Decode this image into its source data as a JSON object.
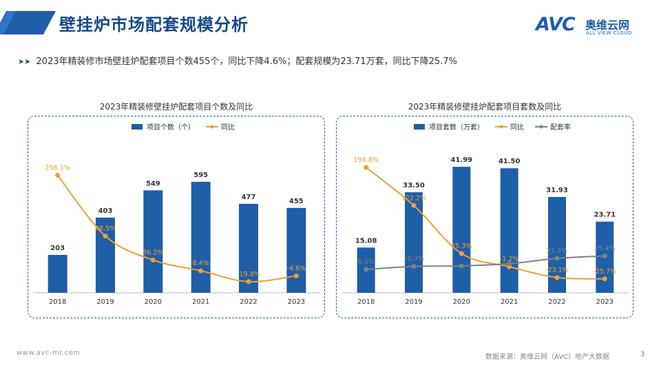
{
  "header": {
    "title": "壁挂炉市场配套规模分析",
    "logo_text": "AVC",
    "logo_cn": "奥维云网",
    "logo_en": "ALL VIEW CLOUD"
  },
  "summary": "2023年精装修市场壁挂炉配套项目个数455个，同比下降4.6%；配套规模为23.71万套，同比下降25.7%",
  "chart_data": [
    {
      "type": "bar",
      "title": "2023年精装修壁挂炉配套项目个数及同比",
      "categories": [
        "2018",
        "2019",
        "2020",
        "2021",
        "2022",
        "2023"
      ],
      "series": [
        {
          "name": "项目个数（个）",
          "kind": "bar",
          "color": "#1f5ea8",
          "values": [
            203,
            403,
            549,
            595,
            477,
            455
          ],
          "labels": [
            "203",
            "403",
            "549",
            "595",
            "477",
            "455"
          ]
        },
        {
          "name": "同比",
          "kind": "line",
          "color": "#f0a030",
          "values": [
            256.1,
            98.5,
            36.2,
            8.4,
            -19.8,
            -4.6
          ],
          "labels": [
            "256.1%",
            "98.5%",
            "36.2%",
            "8.4%",
            "-19.8%",
            "-4.6%"
          ]
        }
      ],
      "legend": "top",
      "grid": false
    },
    {
      "type": "bar",
      "title": "2023年精装修壁挂炉配套项目套数及同比",
      "categories": [
        "2018",
        "2019",
        "2020",
        "2021",
        "2022",
        "2023"
      ],
      "series": [
        {
          "name": "项目套数（万套）",
          "kind": "bar",
          "color": "#1f5ea8",
          "values": [
            15.08,
            33.5,
            41.99,
            41.5,
            31.93,
            23.71
          ],
          "labels": [
            "15.08",
            "33.50",
            "41.99",
            "41.50",
            "31.93",
            "23.71"
          ]
        },
        {
          "name": "同比",
          "kind": "line",
          "color": "#f0a030",
          "values": [
            198.8,
            122.2,
            25.3,
            -1.2,
            -23.1,
            -25.7
          ],
          "labels": [
            "198.8%",
            "122.2%",
            "25.3%",
            "-1.2%",
            "-23.1%",
            "-25.7%"
          ]
        },
        {
          "name": "配套率",
          "kind": "line",
          "color": "#808080",
          "values": [
            6.0,
            10.3,
            11.0,
            14.2,
            21.9,
            25.4
          ],
          "labels": [
            "6.0%",
            "10.3%",
            "",
            "",
            "21.9%",
            "25.4%"
          ]
        }
      ],
      "legend": "top",
      "grid": false
    }
  ],
  "footer": {
    "website": "www.avc-mr.com",
    "source": "数据来源：奥维云网（AVC）地产大数据",
    "page": "3"
  }
}
